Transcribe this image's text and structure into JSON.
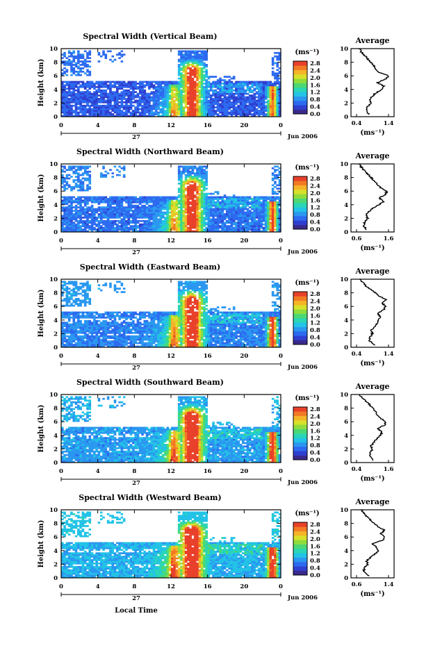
{
  "figure": {
    "xlabel": "Local Time",
    "x_ticks": [
      "0",
      "4",
      "8",
      "12",
      "16",
      "20",
      "0"
    ],
    "day_label": "27",
    "date_label": "Jun 2006",
    "ylabel": "Height (km)",
    "y_ticks": [
      "0",
      "2",
      "4",
      "6",
      "8",
      "10"
    ],
    "colorbar_unit": "(ms⁻¹)",
    "colorbar_ticks": [
      "0.0",
      "0.4",
      "0.8",
      "1.2",
      "1.6",
      "2.0",
      "2.4",
      "2.8"
    ],
    "avg_title": "Average",
    "avg_unit": "(ms⁻¹)"
  },
  "colors": {
    "colormap": [
      "#3a2a8c",
      "#2f3fd0",
      "#2d6af0",
      "#2a97f0",
      "#22c3e6",
      "#2ad6b4",
      "#4bd874",
      "#8fdd3c",
      "#d8e02a",
      "#f5b428",
      "#f27a24",
      "#e8402a"
    ],
    "background": "#ffffff"
  },
  "chart_data": [
    {
      "type": "heatmap",
      "title": "Spectral Width (Vertical Beam)",
      "avg_ticks": [
        "0.4",
        "1.4"
      ],
      "avg_xlim": [
        0.4,
        1.4
      ],
      "avg_profile": {
        "height_km": [
          0.3,
          1,
          1.5,
          2,
          2.5,
          3,
          3.5,
          4,
          4.5,
          5,
          5.5,
          6,
          6.5,
          7,
          7.5,
          8,
          8.5,
          9,
          9.5,
          10
        ],
        "value": [
          0.78,
          0.72,
          0.74,
          0.85,
          0.8,
          0.9,
          1.0,
          1.2,
          1.25,
          1.05,
          1.3,
          1.4,
          1.1,
          1.0,
          0.95,
          0.85,
          0.75,
          0.65,
          0.55,
          0.5
        ]
      }
    },
    {
      "type": "heatmap",
      "title": "Spectral Width (Northward Beam)",
      "avg_ticks": [
        "0.6",
        "1.6"
      ],
      "avg_xlim": [
        0.6,
        1.6
      ],
      "avg_profile": {
        "height_km": [
          0.3,
          1,
          1.5,
          2,
          2.5,
          3,
          3.5,
          4,
          4.5,
          5,
          5.5,
          6,
          6.5,
          7,
          7.5,
          8,
          8.5,
          9,
          9.5,
          10
        ],
        "value": [
          0.9,
          0.82,
          0.85,
          0.95,
          0.9,
          1.0,
          1.1,
          1.3,
          1.45,
          1.3,
          1.5,
          1.55,
          1.35,
          1.25,
          1.15,
          1.05,
          0.95,
          0.85,
          0.75,
          0.7
        ]
      }
    },
    {
      "type": "heatmap",
      "title": "Spectral Width (Eastward Beam)",
      "avg_ticks": [
        "0.4",
        "1.4"
      ],
      "avg_xlim": [
        0.4,
        1.4
      ],
      "avg_profile": {
        "height_km": [
          0.3,
          1,
          1.5,
          2,
          2.5,
          3,
          3.5,
          4,
          4.5,
          5,
          5.5,
          6,
          6.5,
          7,
          7.5,
          8,
          8.5,
          9,
          9.5,
          10
        ],
        "value": [
          0.95,
          0.8,
          0.82,
          0.9,
          0.85,
          0.95,
          1.05,
          1.1,
          1.15,
          1.05,
          1.25,
          1.3,
          1.2,
          1.35,
          1.1,
          1.0,
          0.85,
          0.7,
          0.6,
          0.5
        ]
      }
    },
    {
      "type": "heatmap",
      "title": "Spectral Width (Southward Beam)",
      "avg_ticks": [
        "0.4",
        "1.6"
      ],
      "avg_xlim": [
        0.4,
        1.6
      ],
      "avg_profile": {
        "height_km": [
          0.3,
          1,
          1.5,
          2,
          2.5,
          3,
          3.5,
          4,
          4.5,
          5,
          5.5,
          6,
          6.5,
          7,
          7.5,
          8,
          8.5,
          9,
          9.5,
          10
        ],
        "value": [
          1.05,
          0.9,
          0.92,
          1.0,
          0.95,
          1.05,
          1.15,
          1.3,
          1.35,
          1.2,
          1.45,
          1.5,
          1.3,
          1.2,
          1.1,
          1.0,
          0.9,
          0.75,
          0.62,
          0.5
        ]
      }
    },
    {
      "type": "heatmap",
      "title": "Spectral Width (Westward Beam)",
      "avg_ticks": [
        "0.6",
        "1.4"
      ],
      "avg_xlim": [
        0.6,
        1.4
      ],
      "avg_profile": {
        "height_km": [
          0.3,
          1,
          1.5,
          2,
          2.5,
          3,
          3.5,
          4,
          4.5,
          5,
          5.5,
          6,
          6.5,
          7,
          7.5,
          8,
          8.5,
          9,
          9.5,
          10
        ],
        "value": [
          0.9,
          0.78,
          0.8,
          0.88,
          0.85,
          0.95,
          1.05,
          1.15,
          1.1,
          1.0,
          1.25,
          1.3,
          1.2,
          1.3,
          1.15,
          1.05,
          0.95,
          0.85,
          0.78,
          0.72
        ]
      }
    }
  ]
}
